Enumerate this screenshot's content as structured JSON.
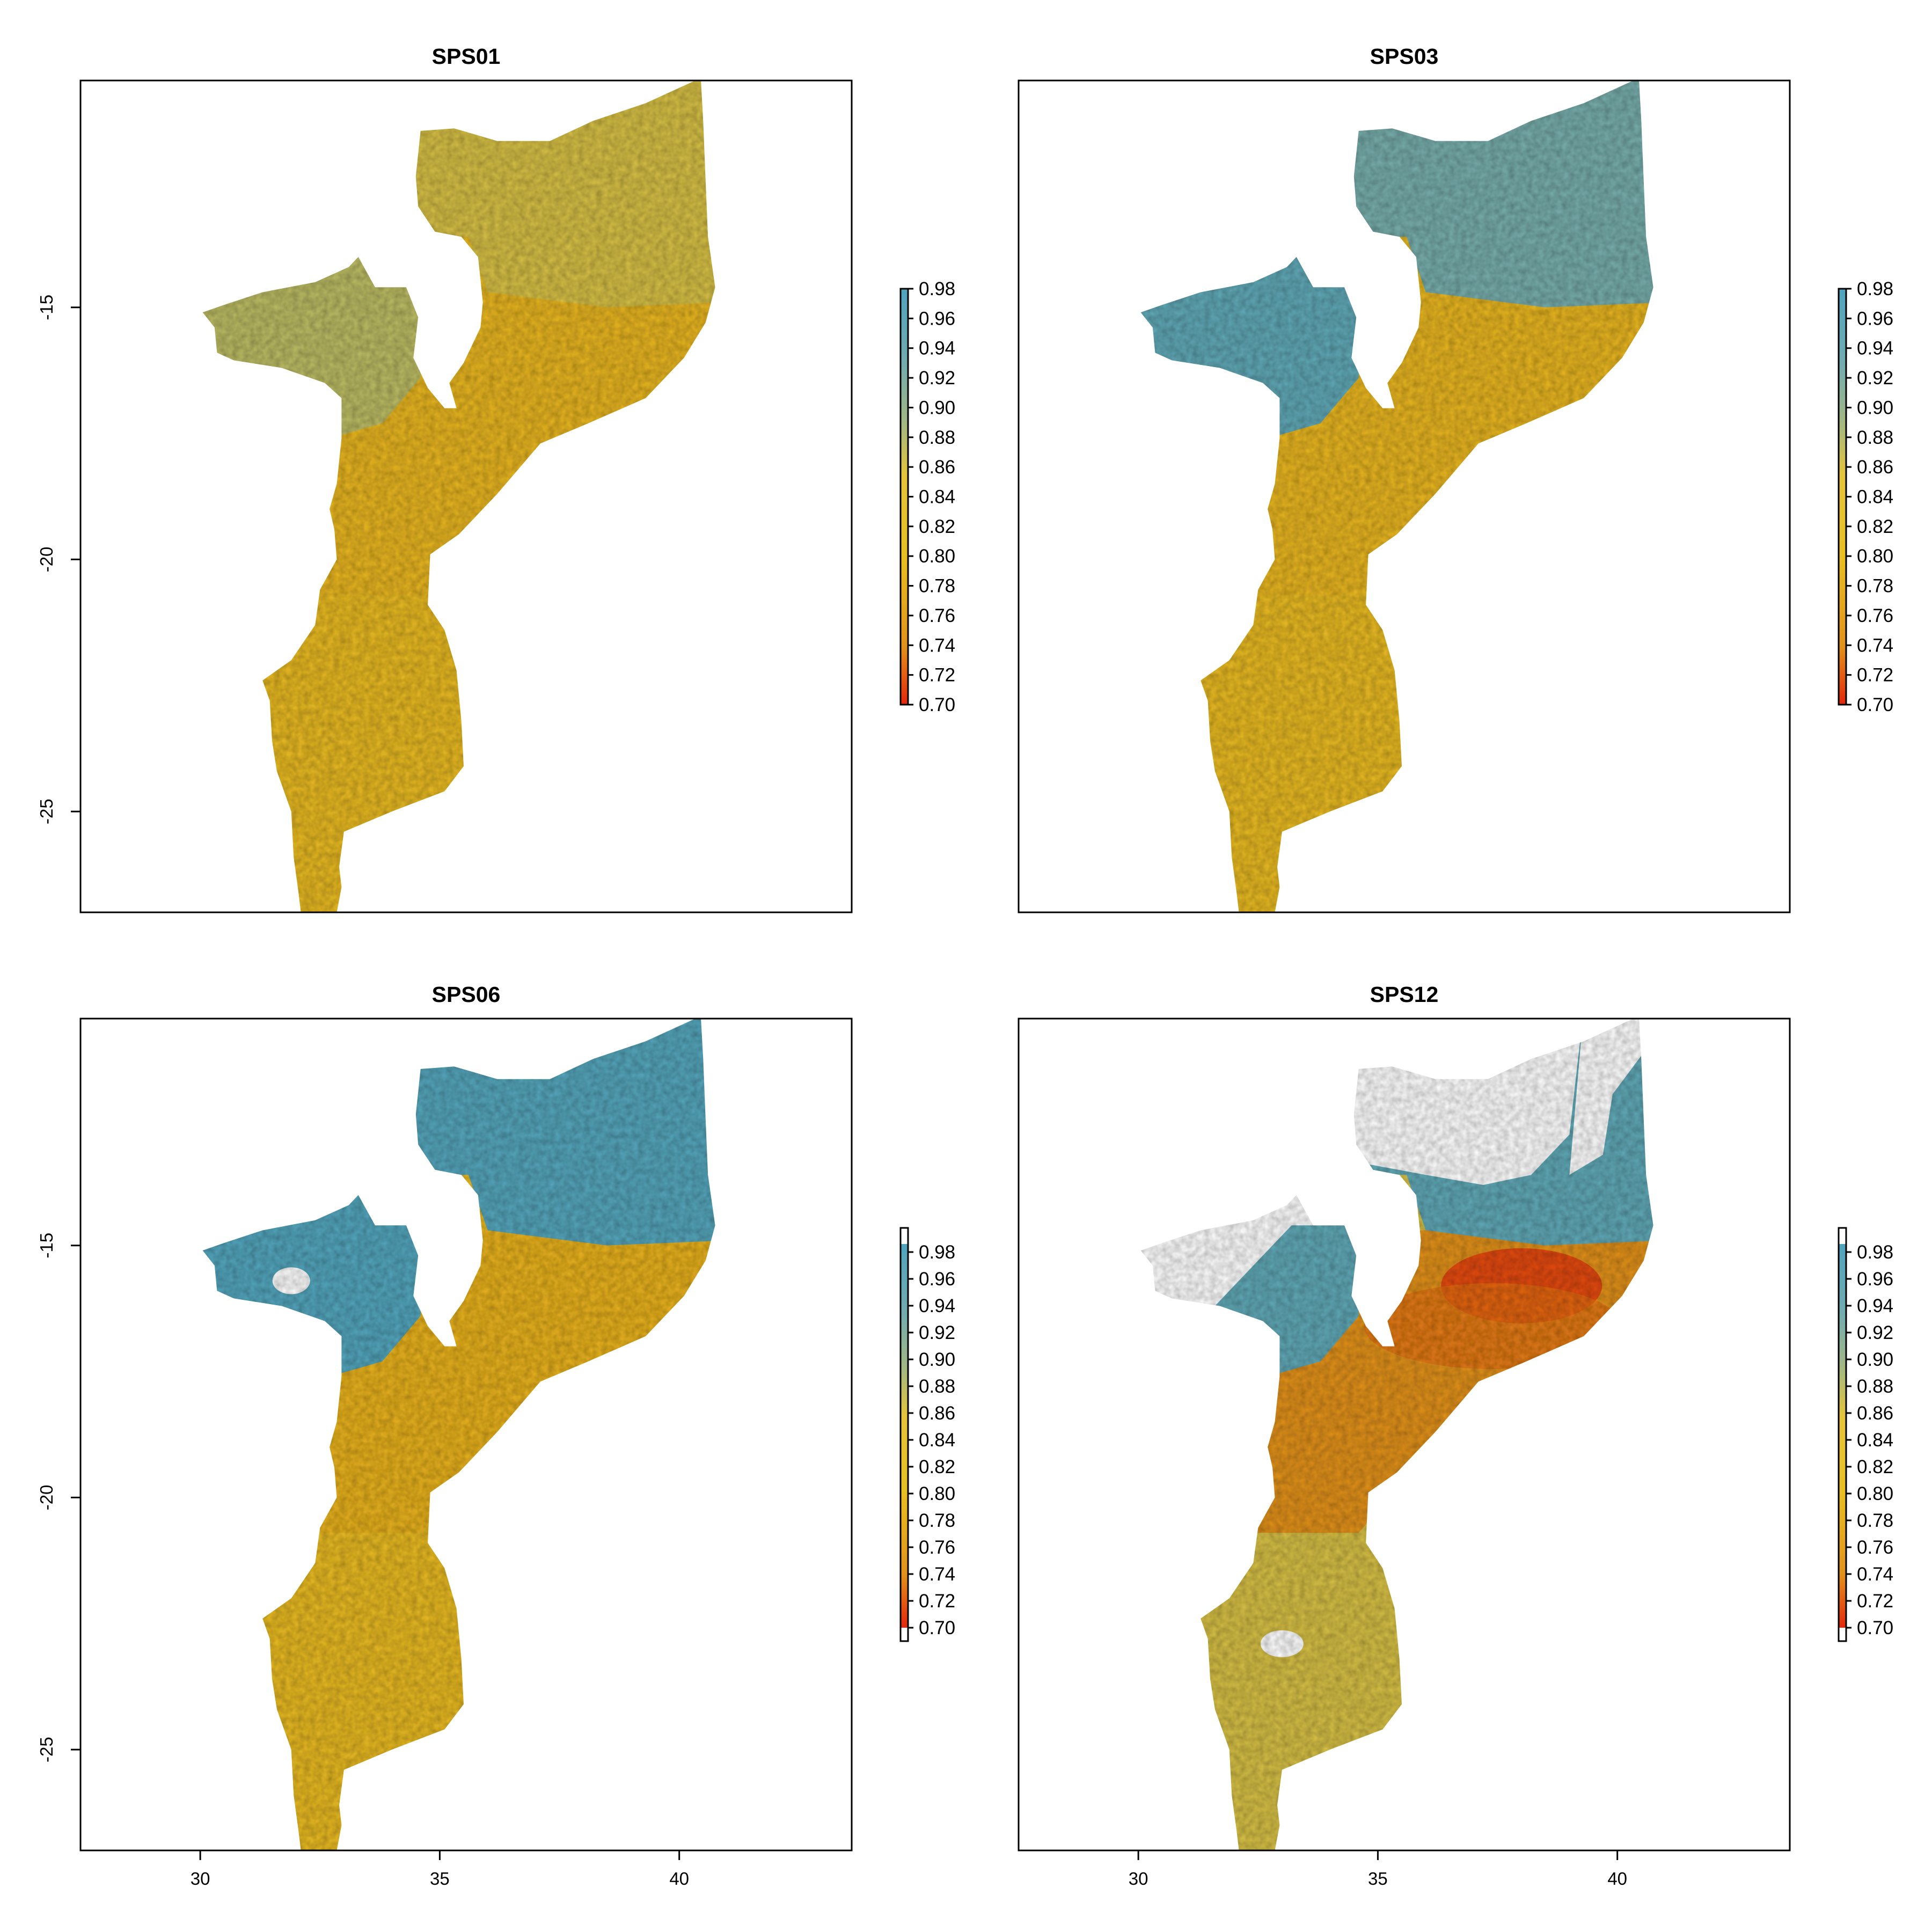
{
  "colors": {
    "red": "#e5270c",
    "orange": "#e2921a",
    "yellow": "#e8c022",
    "green": "#a2b884",
    "blue": "#4fa4bf"
  },
  "chart_data": [
    {
      "type": "heatmap",
      "title": "SPS01",
      "xlim": [
        27.5,
        43.6
      ],
      "ylim": [
        -27,
        -10.5
      ],
      "xticks": [],
      "yticks": [
        "-15",
        "-20",
        "-25"
      ],
      "legend_position": "right",
      "legend": {
        "min": 0.7,
        "max": 0.98,
        "white_ends": false,
        "labels": [
          "0.98",
          "0.96",
          "0.94",
          "0.92",
          "0.90",
          "0.88",
          "0.86",
          "0.84",
          "0.82",
          "0.80",
          "0.78",
          "0.76",
          "0.74",
          "0.72",
          "0.70"
        ]
      },
      "regions": [
        {
          "zone": "northwest",
          "level": 0.87
        },
        {
          "zone": "north",
          "level": 0.86
        },
        {
          "zone": "central",
          "level": 0.81
        },
        {
          "zone": "south",
          "level": 0.82
        }
      ]
    },
    {
      "type": "heatmap",
      "title": "SPS03",
      "xlim": [
        27.5,
        43.6
      ],
      "ylim": [
        -27,
        -10.5
      ],
      "xticks": [],
      "yticks": [],
      "legend_position": "right",
      "legend": {
        "min": 0.7,
        "max": 0.98,
        "white_ends": false,
        "labels": [
          "0.98",
          "0.96",
          "0.94",
          "0.92",
          "0.90",
          "0.88",
          "0.86",
          "0.84",
          "0.82",
          "0.80",
          "0.78",
          "0.76",
          "0.74",
          "0.72",
          "0.70"
        ]
      },
      "regions": [
        {
          "zone": "northwest",
          "level": 0.93
        },
        {
          "zone": "north",
          "level": 0.91
        },
        {
          "zone": "central",
          "level": 0.81
        },
        {
          "zone": "south",
          "level": 0.82
        }
      ]
    },
    {
      "type": "heatmap",
      "title": "SPS06",
      "xlim": [
        27.5,
        43.6
      ],
      "ylim": [
        -27,
        -10.5
      ],
      "xticks": [
        "30",
        "35",
        "40"
      ],
      "yticks": [
        "-15",
        "-20",
        "-25"
      ],
      "legend_position": "right",
      "legend": {
        "min": 0.7,
        "max": 0.98,
        "white_ends": true,
        "labels": [
          "0.98",
          "0.96",
          "0.94",
          "0.92",
          "0.90",
          "0.88",
          "0.86",
          "0.84",
          "0.82",
          "0.80",
          "0.78",
          "0.76",
          "0.74",
          "0.72",
          "0.70"
        ]
      },
      "regions": [
        {
          "zone": "northwest",
          "level": 0.95
        },
        {
          "zone": "north",
          "level": 0.94
        },
        {
          "zone": "central",
          "level": 0.8
        },
        {
          "zone": "south",
          "level": 0.82
        }
      ]
    },
    {
      "type": "heatmap",
      "title": "SPS12",
      "xlim": [
        27.5,
        43.6
      ],
      "ylim": [
        -27,
        -10.5
      ],
      "xticks": [
        "30",
        "35",
        "40"
      ],
      "yticks": [],
      "legend_position": "right",
      "legend": {
        "min": 0.7,
        "max": 0.98,
        "white_ends": true,
        "labels": [
          "0.98",
          "0.96",
          "0.94",
          "0.92",
          "0.90",
          "0.88",
          "0.86",
          "0.84",
          "0.82",
          "0.80",
          "0.78",
          "0.76",
          "0.74",
          "0.72",
          "0.70"
        ]
      },
      "regions": [
        {
          "zone": "northwest",
          "level": 0.93
        },
        {
          "zone": "north",
          "level": 0.93
        },
        {
          "zone": "central",
          "level": 0.77
        },
        {
          "zone": "south",
          "level": 0.86
        }
      ]
    }
  ]
}
